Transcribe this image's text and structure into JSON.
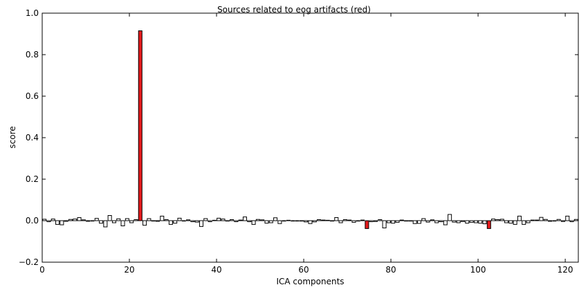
{
  "chart_data": {
    "type": "bar",
    "title": "Sources related to eog artifacts (red)",
    "xlabel": "ICA components",
    "ylabel": "score",
    "xlim": [
      0,
      123
    ],
    "ylim": [
      -0.2,
      1.0
    ],
    "xticks": [
      0,
      20,
      40,
      60,
      80,
      100,
      120
    ],
    "yticks": [
      -0.2,
      0.0,
      0.2,
      0.4,
      0.6,
      0.8,
      1.0
    ],
    "xtick_labels": [
      "0",
      "20",
      "40",
      "60",
      "80",
      "100",
      "120"
    ],
    "ytick_labels": [
      "−0.2",
      "0.0",
      "0.2",
      "0.4",
      "0.6",
      "0.8",
      "1.0"
    ],
    "grid": false,
    "colors": {
      "highlight": "#e41a1c",
      "normal": "#ffffff",
      "edge": "#000000"
    },
    "highlighted": [
      22,
      74,
      102
    ],
    "values": [
      0.007,
      -0.005,
      0.008,
      -0.018,
      -0.02,
      -0.003,
      0.006,
      0.008,
      0.015,
      0.004,
      -0.003,
      0.0,
      0.011,
      -0.012,
      -0.03,
      0.025,
      -0.01,
      0.009,
      -0.025,
      0.01,
      -0.01,
      0.005,
      0.915,
      -0.022,
      0.01,
      0.0,
      -0.003,
      0.022,
      0.005,
      -0.018,
      -0.012,
      0.012,
      0.0,
      0.004,
      -0.005,
      -0.007,
      -0.028,
      0.01,
      -0.005,
      0.002,
      0.012,
      0.008,
      0.0,
      0.005,
      -0.005,
      0.003,
      0.018,
      -0.005,
      -0.018,
      0.006,
      0.004,
      -0.012,
      -0.01,
      0.014,
      -0.014,
      0.0,
      0.002,
      0.0,
      0.0,
      0.0,
      -0.006,
      -0.014,
      -0.006,
      0.005,
      0.003,
      0.002,
      -0.002,
      0.015,
      -0.01,
      0.005,
      0.003,
      -0.008,
      0.0,
      0.003,
      -0.038,
      -0.005,
      -0.004,
      0.005,
      -0.035,
      -0.01,
      -0.012,
      -0.008,
      0.003,
      -0.002,
      0.0,
      -0.014,
      -0.013,
      0.01,
      -0.007,
      0.004,
      -0.01,
      -0.005,
      -0.02,
      0.03,
      -0.007,
      -0.01,
      -0.004,
      -0.012,
      -0.008,
      -0.01,
      -0.012,
      -0.015,
      -0.038,
      0.008,
      0.005,
      0.007,
      -0.01,
      -0.012,
      -0.018,
      0.022,
      -0.018,
      -0.01,
      0.003,
      0.003,
      0.016,
      0.006,
      -0.003,
      0.0,
      0.006,
      -0.004,
      0.022,
      -0.005,
      0.006
    ]
  }
}
